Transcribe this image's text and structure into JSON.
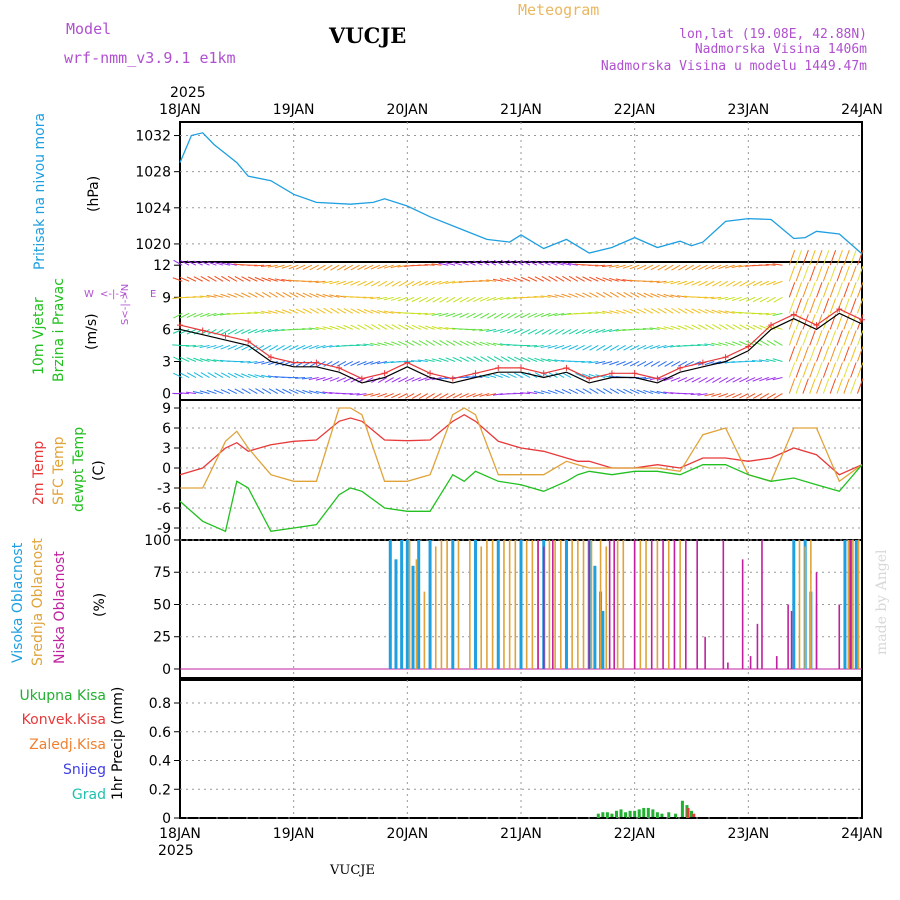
{
  "header": {
    "model_label": "Model",
    "model_name": "wrf-nmm_v3.9.1 e1km",
    "station": "VUCJE",
    "title": "Meteogram",
    "lonlat": "lon,lat (19.08E, 42.88N)",
    "elev": "Nadmorska Visina 1406m",
    "elev_model": "Nadmorska Visina u modelu 1449.47m",
    "watermark": "made by Angel",
    "footer_station": "VUCJE"
  },
  "time_axis": {
    "year": "2025",
    "labels": [
      "18JAN",
      "19JAN",
      "20JAN",
      "21JAN",
      "22JAN",
      "23JAN",
      "24JAN"
    ]
  },
  "colors": {
    "pressure": "#1e9fe0",
    "temp2m": "#e8393a",
    "sfc": "#e0a33a",
    "dew": "#22c020",
    "high_cloud": "#1e9fe0",
    "mid_cloud": "#e0a33a",
    "low_cloud": "#c020a0",
    "total_precip": "#22b030",
    "conv_precip": "#e8393a",
    "frozen_precip": "#f08030",
    "snow": "#4040e0",
    "hail": "#20c0b0"
  },
  "chart_data": [
    {
      "type": "line",
      "panel": "pressure",
      "ylabel": "Pritisak na nivou mora",
      "unit": "(hPa)",
      "yticks": [
        "1020",
        "1024",
        "1028",
        "1032"
      ],
      "ylim": [
        1018,
        1033.5
      ],
      "x": [
        0,
        0.1,
        0.2,
        0.3,
        0.4,
        0.5,
        0.6,
        0.8,
        1.0,
        1.2,
        1.5,
        1.7,
        1.8,
        2.0,
        2.2,
        2.5,
        2.7,
        2.9,
        3.0,
        3.2,
        3.4,
        3.6,
        3.8,
        4.0,
        4.2,
        4.4,
        4.5,
        4.6,
        4.8,
        5.0,
        5.2,
        5.4,
        5.5,
        5.6,
        5.8,
        6.0
      ],
      "values": [
        1029,
        1032,
        1032.3,
        1031,
        1030,
        1029,
        1027.5,
        1027,
        1025.5,
        1024.6,
        1024.4,
        1024.6,
        1025,
        1024.2,
        1023,
        1021.5,
        1020.5,
        1020.2,
        1021,
        1019.5,
        1020.5,
        1019,
        1019.6,
        1020.7,
        1019.6,
        1020.3,
        1019.8,
        1020.2,
        1022.5,
        1022.8,
        1022.7,
        1020.6,
        1020.7,
        1021.4,
        1021.1,
        1018.9
      ]
    },
    {
      "type": "line",
      "panel": "wind",
      "ylabel": "10m Vjetar Brzina i Pravac",
      "unit": "(m/s)",
      "compass": [
        "N",
        "S",
        "W",
        "E"
      ],
      "yticks": [
        "0",
        "3",
        "6",
        "9",
        "12"
      ],
      "ylim": [
        -0.6,
        12.3
      ],
      "x": [
        0,
        0.2,
        0.4,
        0.6,
        0.8,
        1.0,
        1.2,
        1.4,
        1.6,
        1.8,
        2.0,
        2.2,
        2.4,
        2.6,
        2.8,
        3.0,
        3.2,
        3.4,
        3.6,
        3.8,
        4.0,
        4.2,
        4.4,
        4.6,
        4.8,
        5.0,
        5.2,
        5.4,
        5.6,
        5.8,
        6.0
      ],
      "values": [
        6.0,
        5.5,
        5.0,
        4.5,
        3.0,
        2.5,
        2.5,
        2.0,
        1.0,
        1.5,
        2.5,
        1.5,
        1.0,
        1.5,
        2.0,
        2.0,
        1.5,
        2.0,
        1.0,
        1.5,
        1.5,
        1.0,
        2.0,
        2.5,
        3.0,
        4.0,
        6.0,
        7.0,
        6.0,
        7.5,
        6.5
      ]
    },
    {
      "type": "line",
      "panel": "temperature",
      "ylabel": "2m Temp / SFC Temp / dewpt Temp",
      "series_labels": [
        "2m Temp",
        "SFC Temp",
        "dewpt Temp"
      ],
      "unit": "(C)",
      "yticks": [
        "-9",
        "-6",
        "-3",
        "0",
        "3",
        "6",
        "9"
      ],
      "ylim": [
        -10.8,
        10.2
      ],
      "x": [
        0,
        0.2,
        0.4,
        0.5,
        0.6,
        0.8,
        1.0,
        1.2,
        1.4,
        1.5,
        1.6,
        1.8,
        2.0,
        2.2,
        2.4,
        2.5,
        2.6,
        2.8,
        3.0,
        3.2,
        3.4,
        3.5,
        3.6,
        3.8,
        4.0,
        4.2,
        4.4,
        4.6,
        4.8,
        5.0,
        5.2,
        5.4,
        5.6,
        5.8,
        6.0
      ],
      "series": [
        {
          "name": "2m Temp",
          "values": [
            -1,
            0,
            3,
            3.8,
            2.5,
            3.5,
            4,
            4.2,
            7,
            7.5,
            7,
            4.2,
            4.1,
            4.2,
            7,
            8,
            7,
            4,
            3,
            2.5,
            1.5,
            1,
            1,
            0,
            0,
            0.5,
            0,
            1.5,
            1.5,
            1,
            1.5,
            3,
            2,
            -1,
            0.5
          ]
        },
        {
          "name": "SFC Temp",
          "values": [
            -3,
            -3,
            4,
            5.5,
            3,
            -1,
            -2,
            -2,
            9,
            9,
            8,
            -2,
            -2,
            -1,
            8,
            9,
            8,
            -1,
            -1,
            -1,
            1,
            0.5,
            0,
            0,
            0,
            0,
            -0.5,
            5,
            6,
            -1,
            -2,
            6,
            6,
            -2,
            0.5
          ]
        },
        {
          "name": "dewpt Temp",
          "values": [
            -5,
            -8,
            -9.5,
            -2,
            -3,
            -9.5,
            -9,
            -8.5,
            -4,
            -3,
            -3.5,
            -6,
            -6.5,
            -6.5,
            -1,
            -2,
            -0.5,
            -2,
            -2.5,
            -3.5,
            -2,
            -1,
            -0.5,
            -1,
            -0.5,
            -0.5,
            -1,
            0.5,
            0.5,
            -1,
            -2,
            -1.5,
            -2.5,
            -3.5,
            0.5
          ]
        }
      ]
    },
    {
      "type": "bar",
      "panel": "cloud",
      "ylabel": "Visoka Oblacnost / Srednja Oblacnost / Niska Oblacnost",
      "series_labels": [
        "Visoka Oblacnost",
        "Srednja Oblacnost",
        "Niska Oblacnost"
      ],
      "unit": "(%)",
      "yticks": [
        "0",
        "25",
        "50",
        "75",
        "100"
      ],
      "ylim": [
        -7,
        100
      ],
      "series": [
        {
          "name": "Visoka Oblacnost",
          "values": [
            [
              1.85,
              100
            ],
            [
              1.9,
              85
            ],
            [
              1.95,
              100
            ],
            [
              2.0,
              100
            ],
            [
              2.05,
              80
            ],
            [
              2.1,
              100
            ],
            [
              2.2,
              100
            ],
            [
              2.4,
              100
            ],
            [
              2.6,
              100
            ],
            [
              2.8,
              100
            ],
            [
              3.0,
              100
            ],
            [
              3.2,
              100
            ],
            [
              3.4,
              100
            ],
            [
              3.6,
              100
            ],
            [
              3.65,
              80
            ],
            [
              3.7,
              60
            ],
            [
              3.72,
              45
            ],
            [
              5.4,
              100
            ],
            [
              5.5,
              100
            ],
            [
              5.55,
              60
            ],
            [
              5.85,
              100
            ],
            [
              5.9,
              100
            ],
            [
              5.95,
              100
            ]
          ]
        },
        {
          "name": "Srednja Oblacnost",
          "values": [
            [
              2.02,
              100
            ],
            [
              2.08,
              85
            ],
            [
              2.15,
              60
            ],
            [
              2.25,
              95
            ],
            [
              2.3,
              100
            ],
            [
              2.35,
              100
            ],
            [
              2.45,
              100
            ],
            [
              2.55,
              100
            ],
            [
              2.65,
              95
            ],
            [
              2.7,
              100
            ],
            [
              2.75,
              100
            ],
            [
              2.85,
              100
            ],
            [
              2.9,
              100
            ],
            [
              2.95,
              100
            ],
            [
              3.05,
              100
            ],
            [
              3.1,
              100
            ],
            [
              3.15,
              100
            ],
            [
              3.25,
              100
            ],
            [
              3.3,
              100
            ],
            [
              3.35,
              100
            ],
            [
              3.45,
              100
            ],
            [
              3.5,
              100
            ],
            [
              3.55,
              100
            ],
            [
              3.62,
              100
            ],
            [
              3.7,
              100
            ],
            [
              3.75,
              95
            ],
            [
              3.85,
              100
            ],
            [
              3.9,
              100
            ],
            [
              4.0,
              100
            ],
            [
              4.05,
              100
            ],
            [
              4.1,
              100
            ],
            [
              4.2,
              100
            ],
            [
              4.3,
              100
            ],
            [
              4.4,
              100
            ],
            [
              5.45,
              100
            ],
            [
              5.5,
              95
            ],
            [
              5.55,
              100
            ],
            [
              5.6,
              50
            ],
            [
              5.88,
              100
            ],
            [
              5.92,
              100
            ],
            [
              5.97,
              100
            ]
          ]
        },
        {
          "name": "Niska Oblacnost",
          "values": [
            [
              3.15,
              100
            ],
            [
              3.2,
              95
            ],
            [
              3.28,
              100
            ],
            [
              3.6,
              100
            ],
            [
              3.78,
              100
            ],
            [
              3.82,
              100
            ],
            [
              4.0,
              100
            ],
            [
              4.15,
              100
            ],
            [
              4.25,
              100
            ],
            [
              4.35,
              100
            ],
            [
              4.45,
              100
            ],
            [
              4.55,
              100
            ],
            [
              4.62,
              25
            ],
            [
              4.78,
              100
            ],
            [
              4.82,
              5
            ],
            [
              4.95,
              85
            ],
            [
              5.02,
              10
            ],
            [
              5.08,
              35
            ],
            [
              5.12,
              100
            ],
            [
              5.25,
              10
            ],
            [
              5.35,
              50
            ],
            [
              5.38,
              45
            ],
            [
              5.6,
              75
            ],
            [
              5.8,
              50
            ],
            [
              5.9,
              100
            ]
          ]
        }
      ]
    },
    {
      "type": "bar",
      "panel": "precipitation",
      "ylabel": "1hr Precip (mm)",
      "series_labels": [
        "Ukupna Kisa",
        "Konvek.Kisa",
        "Zaledj.Kisa",
        "Snijeg",
        "Grad"
      ],
      "yticks": [
        "0",
        "0.2",
        "0.4",
        "0.6",
        "0.8"
      ],
      "ylim": [
        0,
        0.96
      ],
      "series": [
        {
          "name": "Ukupna Kisa",
          "values": [
            [
              3.68,
              0.03
            ],
            [
              3.72,
              0.04
            ],
            [
              3.76,
              0.04
            ],
            [
              3.8,
              0.03
            ],
            [
              3.84,
              0.05
            ],
            [
              3.88,
              0.06
            ],
            [
              3.92,
              0.04
            ],
            [
              3.96,
              0.05
            ],
            [
              4.0,
              0.05
            ],
            [
              4.04,
              0.06
            ],
            [
              4.08,
              0.07
            ],
            [
              4.12,
              0.07
            ],
            [
              4.16,
              0.06
            ],
            [
              4.2,
              0.04
            ],
            [
              4.24,
              0.03
            ],
            [
              4.3,
              0.04
            ],
            [
              4.36,
              0.03
            ],
            [
              4.42,
              0.12
            ],
            [
              4.46,
              0.09
            ],
            [
              4.5,
              0.05
            ]
          ]
        },
        {
          "name": "Konvek.Kisa",
          "values": [
            [
              4.47,
              0.07
            ],
            [
              4.52,
              0.03
            ]
          ]
        }
      ]
    }
  ]
}
